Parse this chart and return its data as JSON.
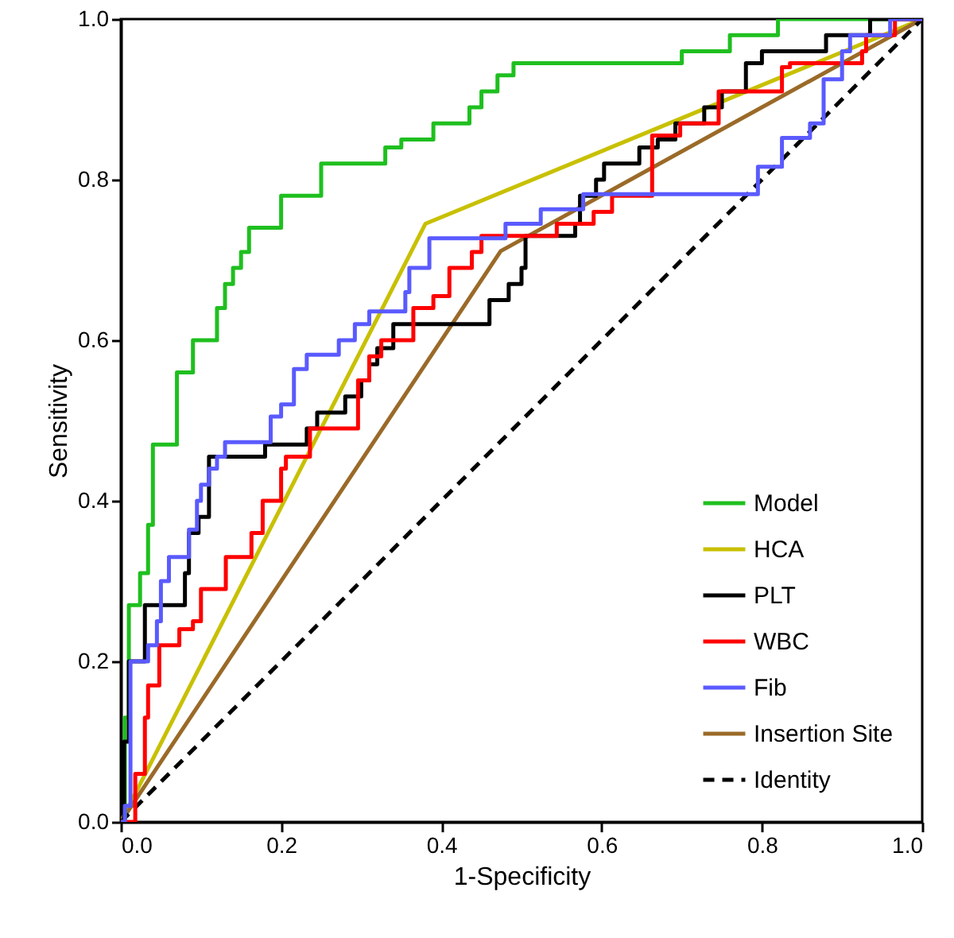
{
  "chart_data": {
    "type": "line",
    "xlabel": "1-Specificity",
    "ylabel": "Sensitivity",
    "xlim": [
      0,
      1
    ],
    "ylim": [
      0,
      1
    ],
    "xticks": [
      {
        "value": 0,
        "label": "0.0"
      },
      {
        "value": 0.2,
        "label": "0.2"
      },
      {
        "value": 0.4,
        "label": "0.4"
      },
      {
        "value": 0.6,
        "label": "0.6"
      },
      {
        "value": 0.8,
        "label": "0.8"
      },
      {
        "value": 1,
        "label": "1.0"
      }
    ],
    "yticks": [
      {
        "value": 0,
        "label": "0.0"
      },
      {
        "value": 0.2,
        "label": "0.2"
      },
      {
        "value": 0.4,
        "label": "0.4"
      },
      {
        "value": 0.6,
        "label": "0.6"
      },
      {
        "value": 0.8,
        "label": "0.8"
      },
      {
        "value": 1,
        "label": "1.0"
      }
    ],
    "grid": false,
    "legend": "bottom right",
    "marker": "none",
    "series": [
      {
        "name": "Model",
        "type": "step",
        "color": "#1fbf1f",
        "x": [
          0,
          0.005,
          0.01,
          0.024,
          0.034,
          0.04,
          0.07,
          0.09,
          0.12,
          0.13,
          0.14,
          0.15,
          0.16,
          0.2,
          0.25,
          0.33,
          0.35,
          0.39,
          0.435,
          0.45,
          0.47,
          0.49,
          0.7,
          0.76,
          0.82,
          1
        ],
        "values": [
          0,
          0.13,
          0.27,
          0.31,
          0.37,
          0.47,
          0.56,
          0.6,
          0.64,
          0.67,
          0.69,
          0.71,
          0.74,
          0.78,
          0.82,
          0.84,
          0.85,
          0.87,
          0.89,
          0.91,
          0.93,
          0.945,
          0.96,
          0.98,
          1,
          1
        ]
      },
      {
        "name": "HCA",
        "type": "line",
        "color": "#c8c000",
        "x": [
          0,
          0.38,
          1
        ],
        "values": [
          0,
          0.745,
          1
        ]
      },
      {
        "name": "PLT",
        "type": "step",
        "color": "#000000",
        "x": [
          0,
          0.004,
          0.01,
          0.03,
          0.08,
          0.085,
          0.097,
          0.11,
          0.18,
          0.232,
          0.245,
          0.28,
          0.3,
          0.31,
          0.32,
          0.34,
          0.46,
          0.484,
          0.5,
          0.505,
          0.51,
          0.567,
          0.573,
          0.593,
          0.603,
          0.647,
          0.67,
          0.692,
          0.728,
          0.75,
          0.78,
          0.8,
          0.88,
          0.935,
          1
        ],
        "values": [
          0,
          0.1,
          0.2,
          0.27,
          0.31,
          0.36,
          0.38,
          0.455,
          0.47,
          0.49,
          0.51,
          0.53,
          0.55,
          0.57,
          0.59,
          0.62,
          0.65,
          0.67,
          0.69,
          0.73,
          0.73,
          0.745,
          0.78,
          0.8,
          0.82,
          0.84,
          0.85,
          0.87,
          0.89,
          0.91,
          0.945,
          0.96,
          0.98,
          1,
          1
        ]
      },
      {
        "name": "WBC",
        "type": "step",
        "color": "#ff0000",
        "x": [
          0,
          0.018,
          0.03,
          0.034,
          0.048,
          0.073,
          0.09,
          0.1,
          0.131,
          0.163,
          0.177,
          0.2,
          0.206,
          0.236,
          0.296,
          0.31,
          0.325,
          0.365,
          0.39,
          0.41,
          0.438,
          0.45,
          0.544,
          0.59,
          0.613,
          0.663,
          0.698,
          0.746,
          0.825,
          0.835,
          0.925,
          0.93,
          0.966,
          1
        ],
        "values": [
          0,
          0.06,
          0.13,
          0.17,
          0.22,
          0.24,
          0.25,
          0.29,
          0.33,
          0.36,
          0.4,
          0.44,
          0.455,
          0.49,
          0.55,
          0.58,
          0.6,
          0.64,
          0.655,
          0.69,
          0.71,
          0.73,
          0.745,
          0.76,
          0.78,
          0.855,
          0.87,
          0.91,
          0.94,
          0.945,
          0.96,
          0.98,
          1,
          1
        ]
      },
      {
        "name": "Fib",
        "type": "step",
        "color": "#5a5aff",
        "x": [
          0,
          0.005,
          0.012,
          0.034,
          0.045,
          0.05,
          0.06,
          0.07,
          0.085,
          0.095,
          0.1,
          0.11,
          0.12,
          0.13,
          0.187,
          0.2,
          0.216,
          0.232,
          0.272,
          0.292,
          0.31,
          0.355,
          0.36,
          0.385,
          0.48,
          0.524,
          0.577,
          0.795,
          0.825,
          0.86,
          0.877,
          0.9,
          0.91,
          0.96,
          1
        ],
        "values": [
          0,
          0.02,
          0.2,
          0.22,
          0.25,
          0.3,
          0.33,
          0.33,
          0.364,
          0.4,
          0.42,
          0.44,
          0.455,
          0.473,
          0.505,
          0.52,
          0.564,
          0.582,
          0.6,
          0.62,
          0.636,
          0.66,
          0.69,
          0.727,
          0.745,
          0.763,
          0.782,
          0.816,
          0.852,
          0.87,
          0.925,
          0.96,
          0.98,
          1,
          1
        ]
      },
      {
        "name": "Insertion Site",
        "type": "line",
        "color": "#9a6a28",
        "x": [
          0,
          0.474,
          1
        ],
        "values": [
          0,
          0.711,
          1
        ]
      },
      {
        "name": "Identity",
        "type": "line",
        "color": "#000000",
        "line_style": "dashed",
        "x": [
          0,
          1
        ],
        "values": [
          0,
          1
        ]
      }
    ]
  }
}
